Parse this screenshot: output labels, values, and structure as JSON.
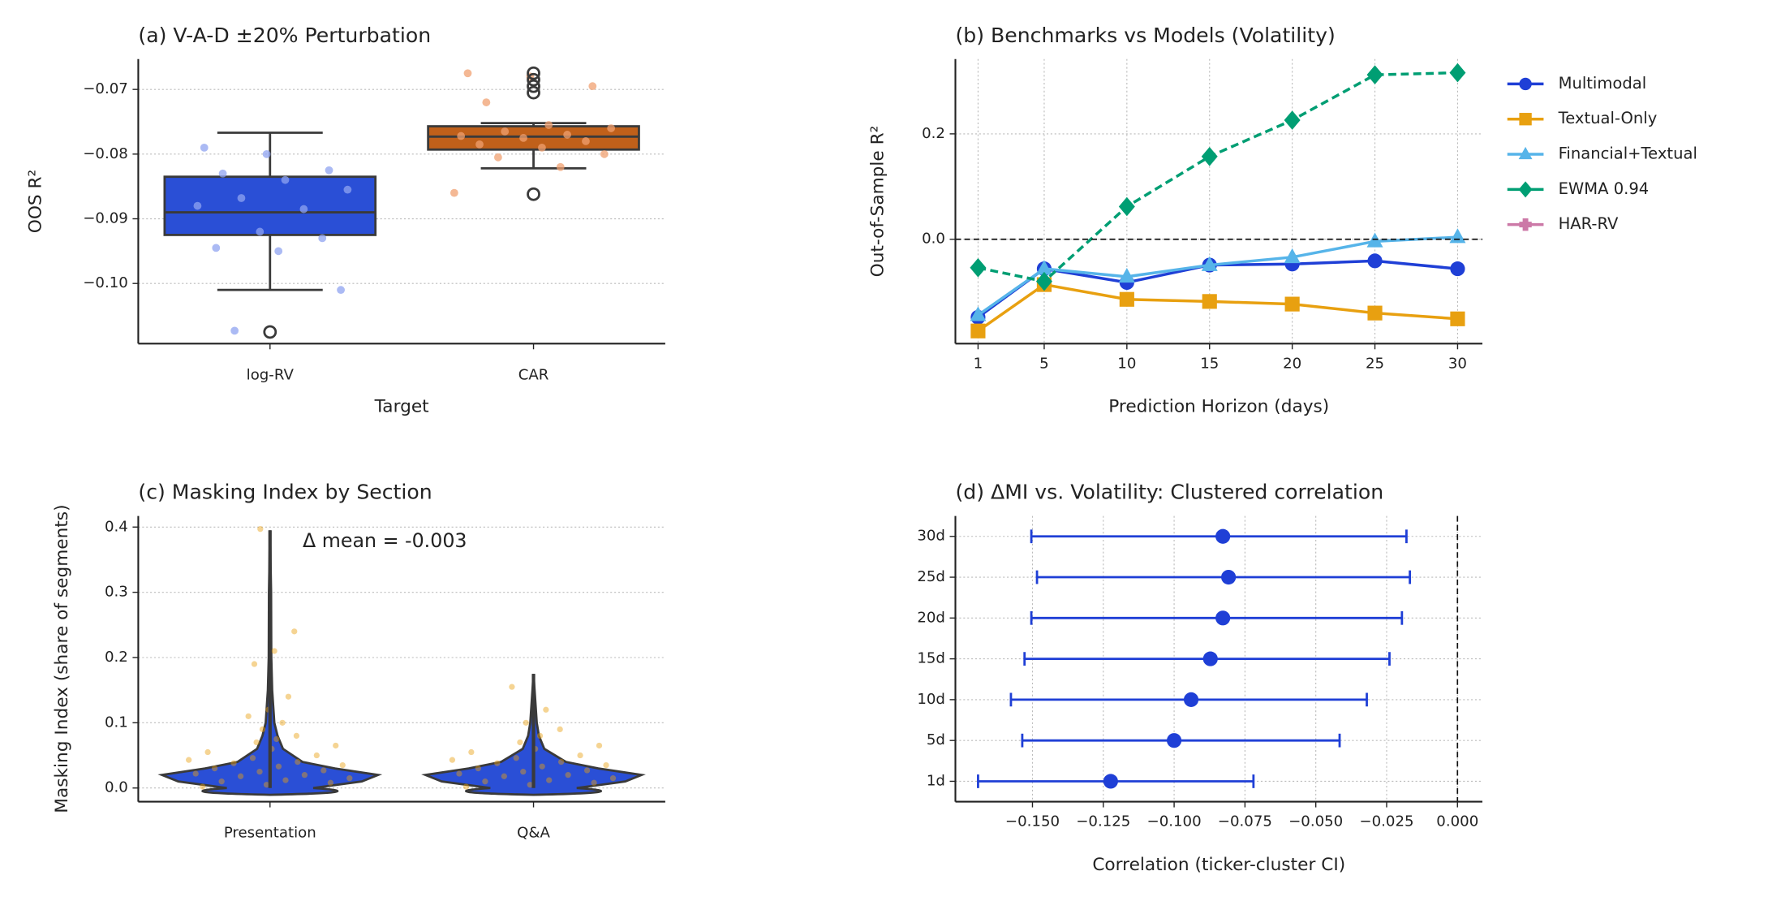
{
  "chart_data": [
    {
      "type": "box",
      "title": "(a) V-A-D ±20% Perturbation",
      "x_label": "Target",
      "y_label": "OOS R²",
      "categories": [
        "log-RV",
        "CAR"
      ],
      "boxes": [
        {
          "color": "#2a4fd6",
          "point_color": "#8fa3f0",
          "q1": -0.0925,
          "median": -0.089,
          "q3": -0.0835,
          "whislo": -0.101,
          "whishi": -0.0767,
          "fliers": [
            -0.1075
          ],
          "points": [
            -0.079,
            -0.08,
            -0.0825,
            -0.083,
            -0.084,
            -0.0855,
            -0.0868,
            -0.0885,
            -0.088,
            -0.092,
            -0.093,
            -0.0945,
            -0.095,
            -0.101,
            -0.1073
          ]
        },
        {
          "color": "#c0601a",
          "point_color": "#f0a070",
          "q1": -0.0793,
          "median": -0.0773,
          "q3": -0.0757,
          "whislo": -0.0822,
          "whishi": -0.0752,
          "fliers": [
            -0.0675,
            -0.0685,
            -0.0695,
            -0.0705,
            -0.0862
          ],
          "points": [
            -0.0675,
            -0.068,
            -0.0695,
            -0.072,
            -0.0755,
            -0.076,
            -0.0765,
            -0.077,
            -0.0772,
            -0.0775,
            -0.078,
            -0.0785,
            -0.079,
            -0.08,
            -0.0805,
            -0.082,
            -0.086
          ]
        }
      ],
      "ylim": [
        -0.1093,
        -0.0653
      ],
      "yticks": [
        {
          "value": -0.1,
          "label": "−0.10"
        },
        {
          "value": -0.09,
          "label": "−0.09"
        },
        {
          "value": -0.08,
          "label": "−0.08"
        },
        {
          "value": -0.07,
          "label": "−0.07"
        }
      ],
      "grid": "y"
    },
    {
      "type": "line",
      "title": "(b) Benchmarks vs Models (Volatility)",
      "x_label": "Prediction Horizon (days)",
      "y_label": "Out-of-Sample R²",
      "x": [
        1,
        5,
        10,
        15,
        20,
        25,
        30
      ],
      "series": [
        {
          "name": "Multimodal",
          "color": "#1f3fd6",
          "marker": "o",
          "linestyle": "-",
          "values": [
            -0.148,
            -0.056,
            -0.082,
            -0.049,
            -0.047,
            -0.041,
            -0.056
          ]
        },
        {
          "name": "Textual-Only",
          "color": "#e8a010",
          "marker": "s",
          "linestyle": "-",
          "values": [
            -0.174,
            -0.086,
            -0.114,
            -0.118,
            -0.123,
            -0.14,
            -0.151
          ]
        },
        {
          "name": "Financial+Textual",
          "color": "#56b4e9",
          "marker": "^",
          "linestyle": "-",
          "values": [
            -0.144,
            -0.056,
            -0.071,
            -0.049,
            -0.034,
            -0.004,
            0.004
          ]
        },
        {
          "name": "EWMA 0.94",
          "color": "#009e73",
          "marker": "D",
          "linestyle": "--",
          "values": [
            -0.054,
            -0.08,
            0.062,
            0.157,
            0.226,
            0.312,
            0.316
          ]
        },
        {
          "name": "HAR-RV",
          "color": "#cc79a7",
          "marker": "P",
          "linestyle": "-",
          "values": [
            null,
            null,
            null,
            null,
            null,
            null,
            null
          ]
        }
      ],
      "hline": 0,
      "xlim": [
        -0.37,
        31.5
      ],
      "xticks": [
        1,
        5,
        10,
        15,
        20,
        25,
        30
      ],
      "ylim": [
        -0.198,
        0.342
      ],
      "yticks": [
        {
          "value": 0,
          "label": "0.0"
        },
        {
          "value": 0.2,
          "label": "0.2"
        }
      ],
      "grid": "both",
      "legend": "outside right"
    },
    {
      "type": "violin",
      "title": "(c) Masking Index by Section",
      "y_label": "Masking Index (share of segments)",
      "annotation": "Δ mean = -0.003",
      "categories": [
        "Presentation",
        "Q&A"
      ],
      "color": "#2a4fd6",
      "point_color": "#e8a010",
      "violins": [
        {
          "y": [
            0,
            0.01,
            0.02,
            0.03,
            0.04,
            0.06,
            0.08,
            0.1,
            0.15,
            0.2,
            0.3,
            0.395
          ],
          "density": [
            0.4,
            0.85,
            1,
            0.6,
            0.3,
            0.12,
            0.07,
            0.04,
            0.02,
            0.012,
            0.01,
            0
          ],
          "points": [
            0.002,
            0.005,
            0.008,
            0.01,
            0.012,
            0.015,
            0.018,
            0.02,
            0.022,
            0.025,
            0.027,
            0.03,
            0.033,
            0.035,
            0.038,
            0.04,
            0.043,
            0.046,
            0.05,
            0.055,
            0.06,
            0.065,
            0.07,
            0.075,
            0.08,
            0.09,
            0.1,
            0.11,
            0.12,
            0.14,
            0.19,
            0.21,
            0.24,
            0.397
          ]
        },
        {
          "y": [
            0,
            0.01,
            0.02,
            0.03,
            0.04,
            0.06,
            0.08,
            0.1,
            0.15,
            0.175
          ],
          "density": [
            0.4,
            0.85,
            1,
            0.6,
            0.3,
            0.1,
            0.05,
            0.03,
            0.01,
            0
          ],
          "points": [
            0.002,
            0.005,
            0.008,
            0.01,
            0.012,
            0.015,
            0.018,
            0.02,
            0.022,
            0.025,
            0.027,
            0.03,
            0.033,
            0.035,
            0.038,
            0.04,
            0.043,
            0.046,
            0.05,
            0.055,
            0.06,
            0.065,
            0.07,
            0.08,
            0.09,
            0.1,
            0.12,
            0.155
          ]
        }
      ],
      "ylim": [
        -0.021,
        0.417
      ],
      "yticks": [
        {
          "value": 0,
          "label": "0.0"
        },
        {
          "value": 0.1,
          "label": "0.1"
        },
        {
          "value": 0.2,
          "label": "0.2"
        },
        {
          "value": 0.3,
          "label": "0.3"
        },
        {
          "value": 0.4,
          "label": "0.4"
        }
      ],
      "grid": "y"
    },
    {
      "type": "errorbar",
      "title": "(d) ΔMI vs. Volatility: Clustered correlation",
      "x_label": "Correlation (ticker-cluster CI)",
      "categories": [
        "1d",
        "5d",
        "10d",
        "15d",
        "20d",
        "25d",
        "30d"
      ],
      "color": "#1f3fd6",
      "values": [
        -0.1224,
        -0.1,
        -0.094,
        -0.0872,
        -0.0828,
        -0.0808,
        -0.0828
      ],
      "ci_low": [
        -0.1692,
        -0.1536,
        -0.1576,
        -0.1528,
        -0.1504,
        -0.1484,
        -0.1504
      ],
      "ci_high": [
        -0.072,
        -0.0416,
        -0.032,
        -0.024,
        -0.0196,
        -0.0168,
        -0.018
      ],
      "vline": 0,
      "xlim": [
        -0.1772,
        0.0088
      ],
      "xticks": [
        {
          "value": -0.15,
          "label": "−0.150"
        },
        {
          "value": -0.125,
          "label": "−0.125"
        },
        {
          "value": -0.1,
          "label": "−0.100"
        },
        {
          "value": -0.075,
          "label": "−0.075"
        },
        {
          "value": -0.05,
          "label": "−0.050"
        },
        {
          "value": -0.025,
          "label": "−0.025"
        },
        {
          "value": 0,
          "label": "0.000"
        }
      ],
      "grid": "both"
    }
  ]
}
